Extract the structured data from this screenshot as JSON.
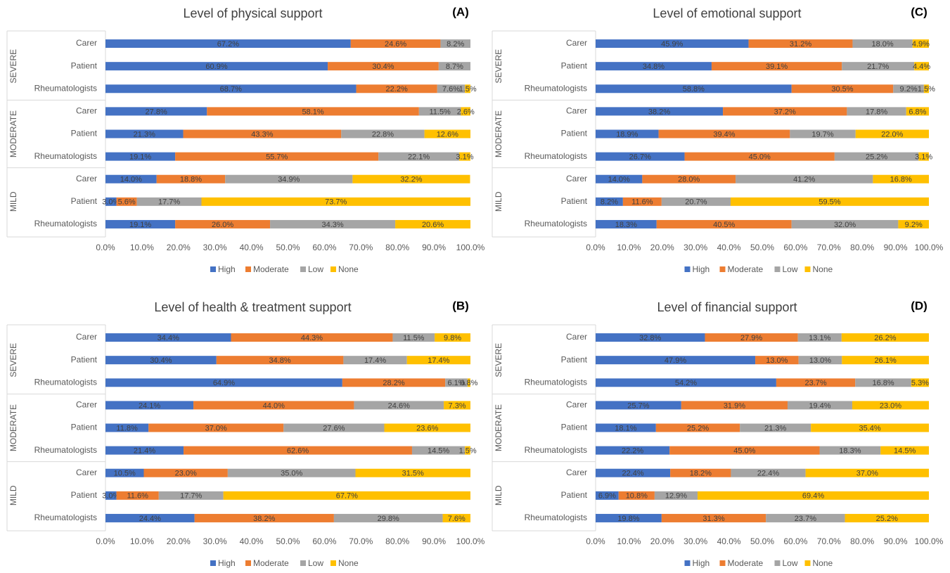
{
  "chart_data": [
    {
      "type": "bar",
      "orientation": "horizontal",
      "stacked": true,
      "title": "Level of physical support",
      "panel_label": "(A)",
      "groups": [
        "SEVERE",
        "MODERATE",
        "MILD"
      ],
      "categories": [
        "Carer",
        "Patient",
        "Rheumatologists",
        "Carer",
        "Patient",
        "Rheumatologists",
        "Carer",
        "Patient",
        "Rheumatologists"
      ],
      "series": [
        {
          "name": "High",
          "color": "#4472c4",
          "values": [
            67.2,
            60.9,
            68.7,
            27.8,
            21.3,
            19.1,
            14.0,
            3.0,
            19.1
          ],
          "value_labels": [
            "67.2%",
            "60.9%",
            "68.7%",
            "27.8%",
            "21.3%",
            "19.1%",
            "14.0%",
            "3.0%",
            "19.1%"
          ]
        },
        {
          "name": "Moderate",
          "color": "#ed7d31",
          "values": [
            24.6,
            30.4,
            22.2,
            58.1,
            43.3,
            55.7,
            18.8,
            5.6,
            26.0
          ],
          "value_labels": [
            "24.6%",
            "30.4%",
            "22.2%",
            "58.1%",
            "43.3%",
            "55.7%",
            "18.8%",
            "5.6%",
            "26.0%"
          ]
        },
        {
          "name": "Low",
          "color": "#a5a5a5",
          "values": [
            8.2,
            8.7,
            7.6,
            11.5,
            22.8,
            22.1,
            34.9,
            17.7,
            34.3
          ],
          "value_labels": [
            "8.2%",
            "8.7%",
            "7.6%",
            "11.5%",
            "22.8%",
            "22.1%",
            "34.9%",
            "17.7%",
            "34.3%"
          ]
        },
        {
          "name": "None",
          "color": "#ffc000",
          "values": [
            null,
            null,
            1.5,
            2.6,
            12.6,
            3.1,
            32.2,
            73.7,
            20.6
          ],
          "value_labels": [
            null,
            null,
            "1.5%",
            "2.6%",
            "12.6%",
            "3.1%",
            "32.2%",
            "73.7%",
            "20.6%"
          ]
        }
      ],
      "xlim": [
        0,
        100
      ],
      "xticks": [
        {
          "value": 0,
          "label": "0.0%"
        },
        {
          "value": 10,
          "label": "10.0%"
        },
        {
          "value": 20,
          "label": "20.0%"
        },
        {
          "value": 30,
          "label": "30.0%"
        },
        {
          "value": 40,
          "label": "40.0%"
        },
        {
          "value": 50,
          "label": "50.0%"
        },
        {
          "value": 60,
          "label": "60.0%"
        },
        {
          "value": 70,
          "label": "70.0%"
        },
        {
          "value": 80,
          "label": "80.0%"
        },
        {
          "value": 90,
          "label": "90.0%"
        },
        {
          "value": 100,
          "label": "100.0%"
        }
      ],
      "legend": "bottom"
    },
    {
      "type": "bar",
      "orientation": "horizontal",
      "stacked": true,
      "title": "Level of health & treatment support",
      "panel_label": "(B)",
      "groups": [
        "SEVERE",
        "MODERATE",
        "MILD"
      ],
      "categories": [
        "Carer",
        "Patient",
        "Rheumatologists",
        "Carer",
        "Patient",
        "Rheumatologists",
        "Carer",
        "Patient",
        "Rheumatologists"
      ],
      "series": [
        {
          "name": "High",
          "color": "#4472c4",
          "values": [
            34.4,
            30.4,
            64.9,
            24.1,
            11.8,
            21.4,
            10.5,
            3.0,
            24.4
          ],
          "value_labels": [
            "34.4%",
            "30.4%",
            "64.9%",
            "24.1%",
            "11.8%",
            "21.4%",
            "10.5%",
            "3.0%",
            "24.4%"
          ]
        },
        {
          "name": "Moderate",
          "color": "#ed7d31",
          "values": [
            44.3,
            34.8,
            28.2,
            44.0,
            37.0,
            62.6,
            23.0,
            11.6,
            38.2
          ],
          "value_labels": [
            "44.3%",
            "34.8%",
            "28.2%",
            "44.0%",
            "37.0%",
            "62.6%",
            "23.0%",
            "11.6%",
            "38.2%"
          ]
        },
        {
          "name": "Low",
          "color": "#a5a5a5",
          "values": [
            11.5,
            17.4,
            6.1,
            24.6,
            27.6,
            14.5,
            35.0,
            17.7,
            29.8
          ],
          "value_labels": [
            "11.5%",
            "17.4%",
            "6.1%",
            "24.6%",
            "27.6%",
            "14.5%",
            "35.0%",
            "17.7%",
            "29.8%"
          ]
        },
        {
          "name": "None",
          "color": "#ffc000",
          "values": [
            9.8,
            17.4,
            0.8,
            7.3,
            23.6,
            1.5,
            31.5,
            67.7,
            7.6
          ],
          "value_labels": [
            "9.8%",
            "17.4%",
            "0.8%",
            "7.3%",
            "23.6%",
            "1.5%",
            "31.5%",
            "67.7%",
            "7.6%"
          ]
        }
      ],
      "xlim": [
        0,
        100
      ],
      "xticks": [
        {
          "value": 0,
          "label": "0.0%"
        },
        {
          "value": 10,
          "label": "10.0%"
        },
        {
          "value": 20,
          "label": "20.0%"
        },
        {
          "value": 30,
          "label": "30.0%"
        },
        {
          "value": 40,
          "label": "40.0%"
        },
        {
          "value": 50,
          "label": "50.0%"
        },
        {
          "value": 60,
          "label": "60.0%"
        },
        {
          "value": 70,
          "label": "70.0%"
        },
        {
          "value": 80,
          "label": "80.0%"
        },
        {
          "value": 90,
          "label": "90.0%"
        },
        {
          "value": 100,
          "label": "100.0%"
        }
      ],
      "legend": "bottom"
    },
    {
      "type": "bar",
      "orientation": "horizontal",
      "stacked": true,
      "title": "Level of emotional support",
      "panel_label": "(C)",
      "groups": [
        "SEVERE",
        "MODERATE",
        "MILD"
      ],
      "categories": [
        "Carer",
        "Patient",
        "Rheumatologists",
        "Carer",
        "Patient",
        "Rheumatologists",
        "Carer",
        "Patient",
        "Rheumatologists"
      ],
      "series": [
        {
          "name": "High",
          "color": "#4472c4",
          "values": [
            45.9,
            34.8,
            58.8,
            38.2,
            18.9,
            26.7,
            14.0,
            8.2,
            18.3
          ],
          "value_labels": [
            "45.9%",
            "34.8%",
            "58.8%",
            "38.2%",
            "18.9%",
            "26.7%",
            "14.0%",
            "8.2%",
            "18.3%"
          ]
        },
        {
          "name": "Moderate",
          "color": "#ed7d31",
          "values": [
            31.2,
            39.1,
            30.5,
            37.2,
            39.4,
            45.0,
            28.0,
            11.6,
            40.5
          ],
          "value_labels": [
            "31.2%",
            "39.1%",
            "30.5%",
            "37.2%",
            "39.4%",
            "45.0%",
            "28.0%",
            "11.6%",
            "40.5%"
          ]
        },
        {
          "name": "Low",
          "color": "#a5a5a5",
          "values": [
            18.0,
            21.7,
            9.2,
            17.8,
            19.7,
            25.2,
            41.2,
            20.7,
            32.0
          ],
          "value_labels": [
            "18.0%",
            "21.7%",
            "9.2%",
            "17.8%",
            "19.7%",
            "25.2%",
            "41.2%",
            "20.7%",
            "32.0%"
          ]
        },
        {
          "name": "None",
          "color": "#ffc000",
          "values": [
            4.9,
            4.4,
            1.5,
            6.8,
            22.0,
            3.1,
            16.8,
            59.5,
            9.2
          ],
          "value_labels": [
            "4.9%",
            "4.4%",
            "1.5%",
            "6.8%",
            "22.0%",
            "3.1%",
            "16.8%",
            "59.5%",
            "9.2%"
          ]
        }
      ],
      "xlim": [
        0,
        100
      ],
      "xticks": [
        {
          "value": 0,
          "label": "0.0%"
        },
        {
          "value": 10,
          "label": "10.0%"
        },
        {
          "value": 20,
          "label": "20.0%"
        },
        {
          "value": 30,
          "label": "30.0%"
        },
        {
          "value": 40,
          "label": "40.0%"
        },
        {
          "value": 50,
          "label": "50.0%"
        },
        {
          "value": 60,
          "label": "60.0%"
        },
        {
          "value": 70,
          "label": "70.0%"
        },
        {
          "value": 80,
          "label": "80.0%"
        },
        {
          "value": 90,
          "label": "90.0%"
        },
        {
          "value": 100,
          "label": "100.0%"
        }
      ],
      "legend": "bottom"
    },
    {
      "type": "bar",
      "orientation": "horizontal",
      "stacked": true,
      "title": "Level of financial support",
      "panel_label": "(D)",
      "groups": [
        "SEVERE",
        "MODERATE",
        "MILD"
      ],
      "categories": [
        "Carer",
        "Patient",
        "Rheumatologists",
        "Carer",
        "Patient",
        "Rheumatologists",
        "Carer",
        "Patient",
        "Rheumatologists"
      ],
      "series": [
        {
          "name": "High",
          "color": "#4472c4",
          "values": [
            32.8,
            47.9,
            54.2,
            25.7,
            18.1,
            22.2,
            22.4,
            6.9,
            19.8
          ],
          "value_labels": [
            "32.8%",
            "47.9%",
            "54.2%",
            "25.7%",
            "18.1%",
            "22.2%",
            "22.4%",
            "6.9%",
            "19.8%"
          ]
        },
        {
          "name": "Moderate",
          "color": "#ed7d31",
          "values": [
            27.9,
            13.0,
            23.7,
            31.9,
            25.2,
            45.0,
            18.2,
            10.8,
            31.3
          ],
          "value_labels": [
            "27.9%",
            "13.0%",
            "23.7%",
            "31.9%",
            "25.2%",
            "45.0%",
            "18.2%",
            "10.8%",
            "31.3%"
          ]
        },
        {
          "name": "Low",
          "color": "#a5a5a5",
          "values": [
            13.1,
            13.0,
            16.8,
            19.4,
            21.3,
            18.3,
            22.4,
            12.9,
            23.7
          ],
          "value_labels": [
            "13.1%",
            "13.0%",
            "16.8%",
            "19.4%",
            "21.3%",
            "18.3%",
            "22.4%",
            "12.9%",
            "23.7%"
          ]
        },
        {
          "name": "None",
          "color": "#ffc000",
          "values": [
            26.2,
            26.1,
            5.3,
            23.0,
            35.4,
            14.5,
            37.0,
            69.4,
            25.2
          ],
          "value_labels": [
            "26.2%",
            "26.1%",
            "5.3%",
            "23.0%",
            "35.4%",
            "14.5%",
            "37.0%",
            "69.4%",
            "25.2%"
          ]
        }
      ],
      "xlim": [
        0,
        100
      ],
      "xticks": [
        {
          "value": 0,
          "label": "0.0%"
        },
        {
          "value": 10,
          "label": "10.0%"
        },
        {
          "value": 20,
          "label": "20.0%"
        },
        {
          "value": 30,
          "label": "30.0%"
        },
        {
          "value": 40,
          "label": "40.0%"
        },
        {
          "value": 50,
          "label": "50.0%"
        },
        {
          "value": 60,
          "label": "60.0%"
        },
        {
          "value": 70,
          "label": "70.0%"
        },
        {
          "value": 80,
          "label": "80.0%"
        },
        {
          "value": 90,
          "label": "90.0%"
        },
        {
          "value": 100,
          "label": "100.0%"
        }
      ],
      "legend": "bottom"
    }
  ]
}
